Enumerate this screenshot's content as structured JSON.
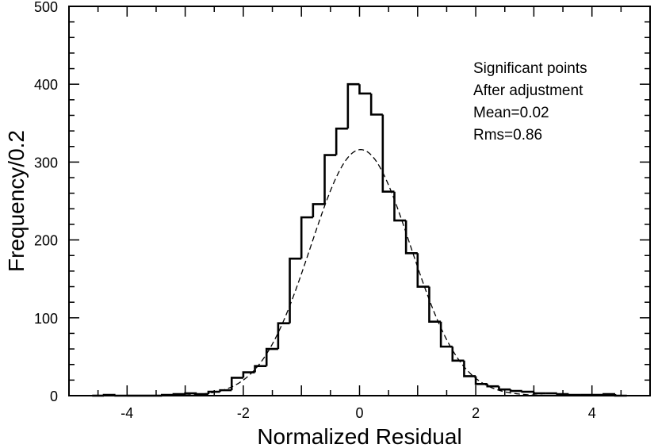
{
  "chart_data": {
    "type": "histogram",
    "xlabel": "Normalized Residual",
    "ylabel": "Frequency/0.2",
    "xlim": [
      -5,
      5
    ],
    "ylim": [
      0,
      500
    ],
    "x_ticks": [
      -4,
      -2,
      0,
      2,
      4
    ],
    "y_ticks": [
      0,
      100,
      200,
      300,
      400,
      500
    ],
    "x_tick_labels": [
      "-4",
      "-2",
      "0",
      "2",
      "4"
    ],
    "y_tick_labels": [
      "0",
      "100",
      "200",
      "300",
      "400",
      "500"
    ],
    "bin_width": 0.2,
    "annotations": [
      "Significant points",
      "After adjustment",
      "Mean=0.02",
      "Rms=0.86"
    ],
    "series": [
      {
        "name": "Histogram",
        "style": "step",
        "x_edges": [
          -4.6,
          -4.4,
          -4.2,
          -4.0,
          -3.8,
          -3.6,
          -3.4,
          -3.2,
          -3.0,
          -2.8,
          -2.6,
          -2.4,
          -2.2,
          -2.0,
          -1.8,
          -1.6,
          -1.4,
          -1.2,
          -1.0,
          -0.8,
          -0.6,
          -0.4,
          -0.2,
          0.0,
          0.2,
          0.4,
          0.6,
          0.8,
          1.0,
          1.2,
          1.4,
          1.6,
          1.8,
          2.0,
          2.2,
          2.4,
          2.6,
          2.8,
          3.0,
          3.2,
          3.4,
          3.6,
          3.8,
          4.0,
          4.2,
          4.4,
          4.6
        ],
        "counts": [
          0,
          1,
          0,
          0,
          0,
          0,
          1,
          2,
          3,
          2,
          5,
          7,
          23,
          30,
          38,
          60,
          93,
          176,
          229,
          246,
          309,
          343,
          400,
          388,
          361,
          262,
          225,
          183,
          140,
          95,
          63,
          45,
          25,
          15,
          12,
          8,
          6,
          5,
          3,
          3,
          2,
          1,
          1,
          1,
          2,
          0
        ]
      },
      {
        "name": "Gaussian fit",
        "style": "dashed",
        "mean": 0.02,
        "sigma": 0.86,
        "peak": 316
      }
    ]
  }
}
